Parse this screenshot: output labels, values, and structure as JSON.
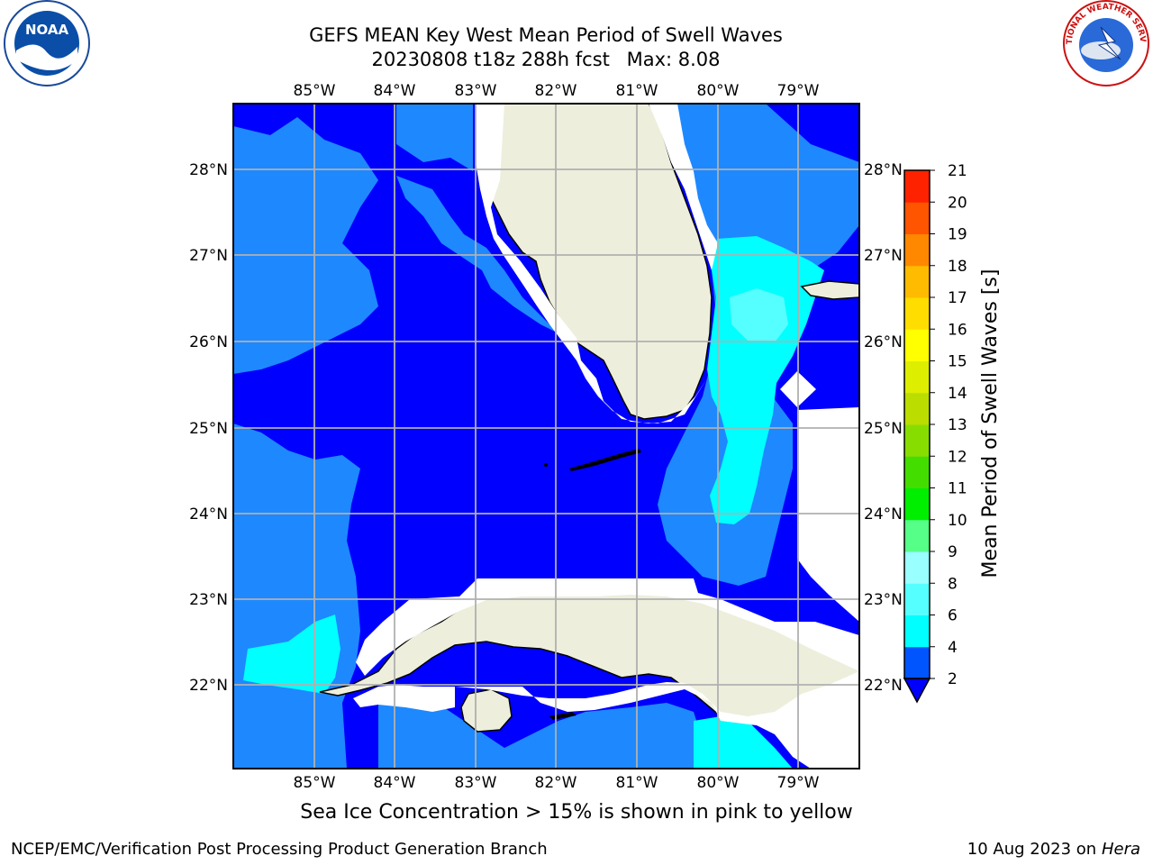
{
  "header": {
    "title_line1": "GEFS MEAN Key West Mean Period of Swell Waves",
    "title_date": "20230808 t18z 288h fcst",
    "title_max": "Max: 8.08"
  },
  "logos": {
    "left": "NOAA",
    "right": "NATIONAL WEATHER SERVICE"
  },
  "map": {
    "lon_labels": [
      "85°W",
      "84°W",
      "83°W",
      "82°W",
      "81°W",
      "80°W",
      "79°W"
    ],
    "lat_labels": [
      "28°N",
      "27°N",
      "26°N",
      "25°N",
      "24°N",
      "23°N",
      "22°N"
    ],
    "colors": {
      "band_2_4": "#0000ff",
      "band_4_6": "#1e88ff",
      "band_6_8": "#00ffff",
      "band_8_9": "#55ffff",
      "land": "#eeeedd",
      "missing": "#ffffff",
      "grid": "#b0b0b0"
    }
  },
  "colorbar": {
    "label": "Mean Period of Swell Waves [s]",
    "ticks": [
      "2",
      "4",
      "6",
      "8",
      "9",
      "10",
      "11",
      "12",
      "13",
      "14",
      "15",
      "16",
      "17",
      "18",
      "19",
      "20",
      "21"
    ],
    "colors": [
      "#0055ff",
      "#00ffff",
      "#55ffff",
      "#99ffff",
      "#55ff88",
      "#00ee00",
      "#44dd00",
      "#88dd00",
      "#bbdd00",
      "#ddee00",
      "#ffff00",
      "#ffdd00",
      "#ffbb00",
      "#ff8800",
      "#ff5500",
      "#ff2200"
    ],
    "extend_color": "#0000ff"
  },
  "caption": "Sea Ice Concentration > 15% is shown in pink to yellow",
  "footer": {
    "left": "NCEP/EMC/Verification Post Processing Product Generation Branch",
    "date": "10 Aug 2023 on",
    "machine": "Hera"
  }
}
